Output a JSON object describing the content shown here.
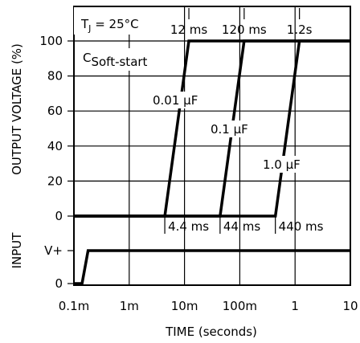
{
  "chart_data": {
    "type": "line",
    "title": "",
    "xlabel": "TIME (seconds)",
    "ylabel": "OUTPUT VOLTAGE (%)",
    "input_label": "INPUT",
    "x_scale": "log",
    "xlim": [
      0.0001,
      10
    ],
    "ylim": [
      0,
      100
    ],
    "grid": true,
    "x_ticks": [
      {
        "value": 0.0001,
        "label": "0.1m"
      },
      {
        "value": 0.001,
        "label": "1m"
      },
      {
        "value": 0.01,
        "label": "10m"
      },
      {
        "value": 0.1,
        "label": "100m"
      },
      {
        "value": 1,
        "label": "1"
      },
      {
        "value": 10,
        "label": "10"
      }
    ],
    "y_ticks": [
      {
        "value": 100,
        "label": "100"
      },
      {
        "value": 80,
        "label": "80"
      },
      {
        "value": 60,
        "label": "60"
      },
      {
        "value": 40,
        "label": "40"
      },
      {
        "value": 20,
        "label": "20"
      },
      {
        "value": 0,
        "label": "0"
      }
    ],
    "input_ticks": [
      {
        "level": 1,
        "label": "V+"
      },
      {
        "level": 0,
        "label": "0"
      }
    ],
    "annotations": {
      "tj_main": "T",
      "tj_sub": "J",
      "tj_rest": " = 25°C",
      "cs_main": "C",
      "cs_sub": "Soft-start"
    },
    "series": [
      {
        "name": "0.01 μF",
        "label": "0.01 μF",
        "start_label": "4.4 ms",
        "end_label": "12 ms",
        "points": [
          [
            0.0001,
            0
          ],
          [
            0.0044,
            0
          ],
          [
            0.012,
            100
          ],
          [
            10,
            100
          ]
        ]
      },
      {
        "name": "0.1 μF",
        "label": "0.1 μF",
        "start_label": "44 ms",
        "end_label": "120 ms",
        "points": [
          [
            0.0001,
            0
          ],
          [
            0.044,
            0
          ],
          [
            0.12,
            100
          ],
          [
            10,
            100
          ]
        ]
      },
      {
        "name": "1.0 μF",
        "label": "1.0 μF",
        "start_label": "440 ms",
        "end_label": "1.2s",
        "points": [
          [
            0.0001,
            0
          ],
          [
            0.44,
            0
          ],
          [
            1.2,
            100
          ],
          [
            10,
            100
          ]
        ]
      }
    ],
    "input_series": {
      "points": [
        [
          0.0001,
          0
        ],
        [
          0.00014,
          0
        ],
        [
          0.00018,
          1
        ],
        [
          10,
          1
        ]
      ]
    }
  }
}
